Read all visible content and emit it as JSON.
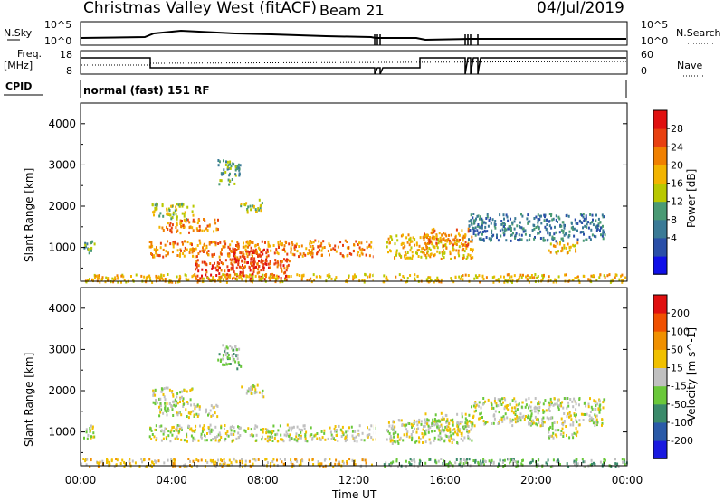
{
  "header": {
    "title": "Christmas Valley West (fitACF)",
    "beam": "Beam 21",
    "date": "04/Jul/2019"
  },
  "top_panels": {
    "nsky_label": "N.Sky",
    "nsky_ticks": [
      "10^5",
      "10^0"
    ],
    "nsearch_label": "N.Search",
    "nsearch_ticks": [
      "10^5",
      "10^0"
    ],
    "freq_label_1": "Freq.",
    "freq_label_2": "[MHz]",
    "freq_ticks": [
      "18",
      "8"
    ],
    "nave_label": "Nave",
    "nave_ticks": [
      "60",
      "0"
    ],
    "cpid_label": "CPID",
    "cpid_text": "normal (fast) 151 RF"
  },
  "chart_data": [
    {
      "type": "heatmap",
      "name": "power",
      "ylabel": "Slant Range [km]",
      "yticks": [
        "4000",
        "3000",
        "2000",
        "1000"
      ],
      "ylim": [
        180,
        4500
      ],
      "xlim": [
        0,
        24
      ],
      "colorbar_label": "Power [dB]",
      "colorbar_ticks": [
        "28",
        "24",
        "20",
        "16",
        "12",
        "8",
        "4"
      ],
      "colorbar_colors": [
        "#1010e8",
        "#2a4fa8",
        "#3a7a96",
        "#4a9a74",
        "#b8c800",
        "#f2b400",
        "#f08000",
        "#e84010",
        "#e01010"
      ],
      "regions": [
        {
          "t0": 0.0,
          "t1": 0.6,
          "r0": 850,
          "r1": 1180,
          "level": 3
        },
        {
          "t0": 3.0,
          "t1": 12.9,
          "r0": 800,
          "r1": 1200,
          "level": 6
        },
        {
          "t0": 3.4,
          "t1": 6.0,
          "r0": 1380,
          "r1": 1720,
          "level": 6
        },
        {
          "t0": 3.1,
          "t1": 5.0,
          "r0": 1700,
          "r1": 2100,
          "level": 4
        },
        {
          "t0": 5.0,
          "t1": 9.2,
          "r0": 220,
          "r1": 750,
          "level": 7
        },
        {
          "t0": 6.5,
          "t1": 8.3,
          "r0": 500,
          "r1": 1000,
          "level": 7
        },
        {
          "t0": 13.4,
          "t1": 17.2,
          "r0": 750,
          "r1": 1350,
          "level": 5
        },
        {
          "t0": 15.0,
          "t1": 17.0,
          "r0": 1050,
          "r1": 1480,
          "level": 6
        },
        {
          "t0": 17.0,
          "t1": 23.0,
          "r0": 1180,
          "r1": 1850,
          "level": 2
        },
        {
          "t0": 20.5,
          "t1": 21.8,
          "r0": 880,
          "r1": 1180,
          "level": 5
        },
        {
          "t0": 0.0,
          "t1": 24.0,
          "r0": 180,
          "r1": 380,
          "level": 5
        },
        {
          "t0": 6.0,
          "t1": 7.0,
          "r0": 2550,
          "r1": 3150,
          "level": 3
        },
        {
          "t0": 7.0,
          "t1": 8.0,
          "r0": 1880,
          "r1": 2200,
          "level": 4
        }
      ]
    },
    {
      "type": "heatmap",
      "name": "velocity",
      "ylabel": "Slant Range [km]",
      "yticks": [
        "4000",
        "3000",
        "2000",
        "1000"
      ],
      "ylim": [
        180,
        4500
      ],
      "xlim": [
        0,
        24
      ],
      "xticks": [
        "00:00",
        "04:00",
        "08:00",
        "12:00",
        "16:00",
        "20:00",
        "00:00"
      ],
      "xlabel": "Time UT",
      "colorbar_label": "Velocity [m s^-1]",
      "colorbar_ticks": [
        "200",
        "100",
        "50",
        "15",
        "-15",
        "-50",
        "-100",
        "-200"
      ],
      "colorbar_colors": [
        "#1a1ae0",
        "#2a5aa8",
        "#3a8a6a",
        "#6ac83a",
        "#c0c0c0",
        "#f0c000",
        "#f09000",
        "#f05000",
        "#e01010"
      ],
      "regions": [
        {
          "t0": 3.0,
          "t1": 12.9,
          "r0": 800,
          "r1": 1200,
          "level": 4
        },
        {
          "t0": 3.4,
          "t1": 6.0,
          "r0": 1380,
          "r1": 1720,
          "level": 4
        },
        {
          "t0": 3.1,
          "t1": 5.0,
          "r0": 1700,
          "r1": 2100,
          "level": 4
        },
        {
          "t0": 0.0,
          "t1": 0.6,
          "r0": 850,
          "r1": 1180,
          "level": 4
        },
        {
          "t0": 13.4,
          "t1": 17.2,
          "r0": 750,
          "r1": 1350,
          "level": 4
        },
        {
          "t0": 15.0,
          "t1": 17.0,
          "r0": 1050,
          "r1": 1480,
          "level": 4
        },
        {
          "t0": 17.0,
          "t1": 23.0,
          "r0": 1180,
          "r1": 1850,
          "level": 4
        },
        {
          "t0": 20.5,
          "t1": 21.8,
          "r0": 880,
          "r1": 1180,
          "level": 4
        },
        {
          "t0": 0.0,
          "t1": 12.9,
          "r0": 180,
          "r1": 380,
          "level": 5
        },
        {
          "t0": 13.0,
          "t1": 24.0,
          "r0": 180,
          "r1": 380,
          "level": 3
        },
        {
          "t0": 6.0,
          "t1": 7.0,
          "r0": 2550,
          "r1": 3150,
          "level": 3
        },
        {
          "t0": 7.0,
          "t1": 8.0,
          "r0": 1880,
          "r1": 2200,
          "level": 4
        }
      ]
    }
  ]
}
